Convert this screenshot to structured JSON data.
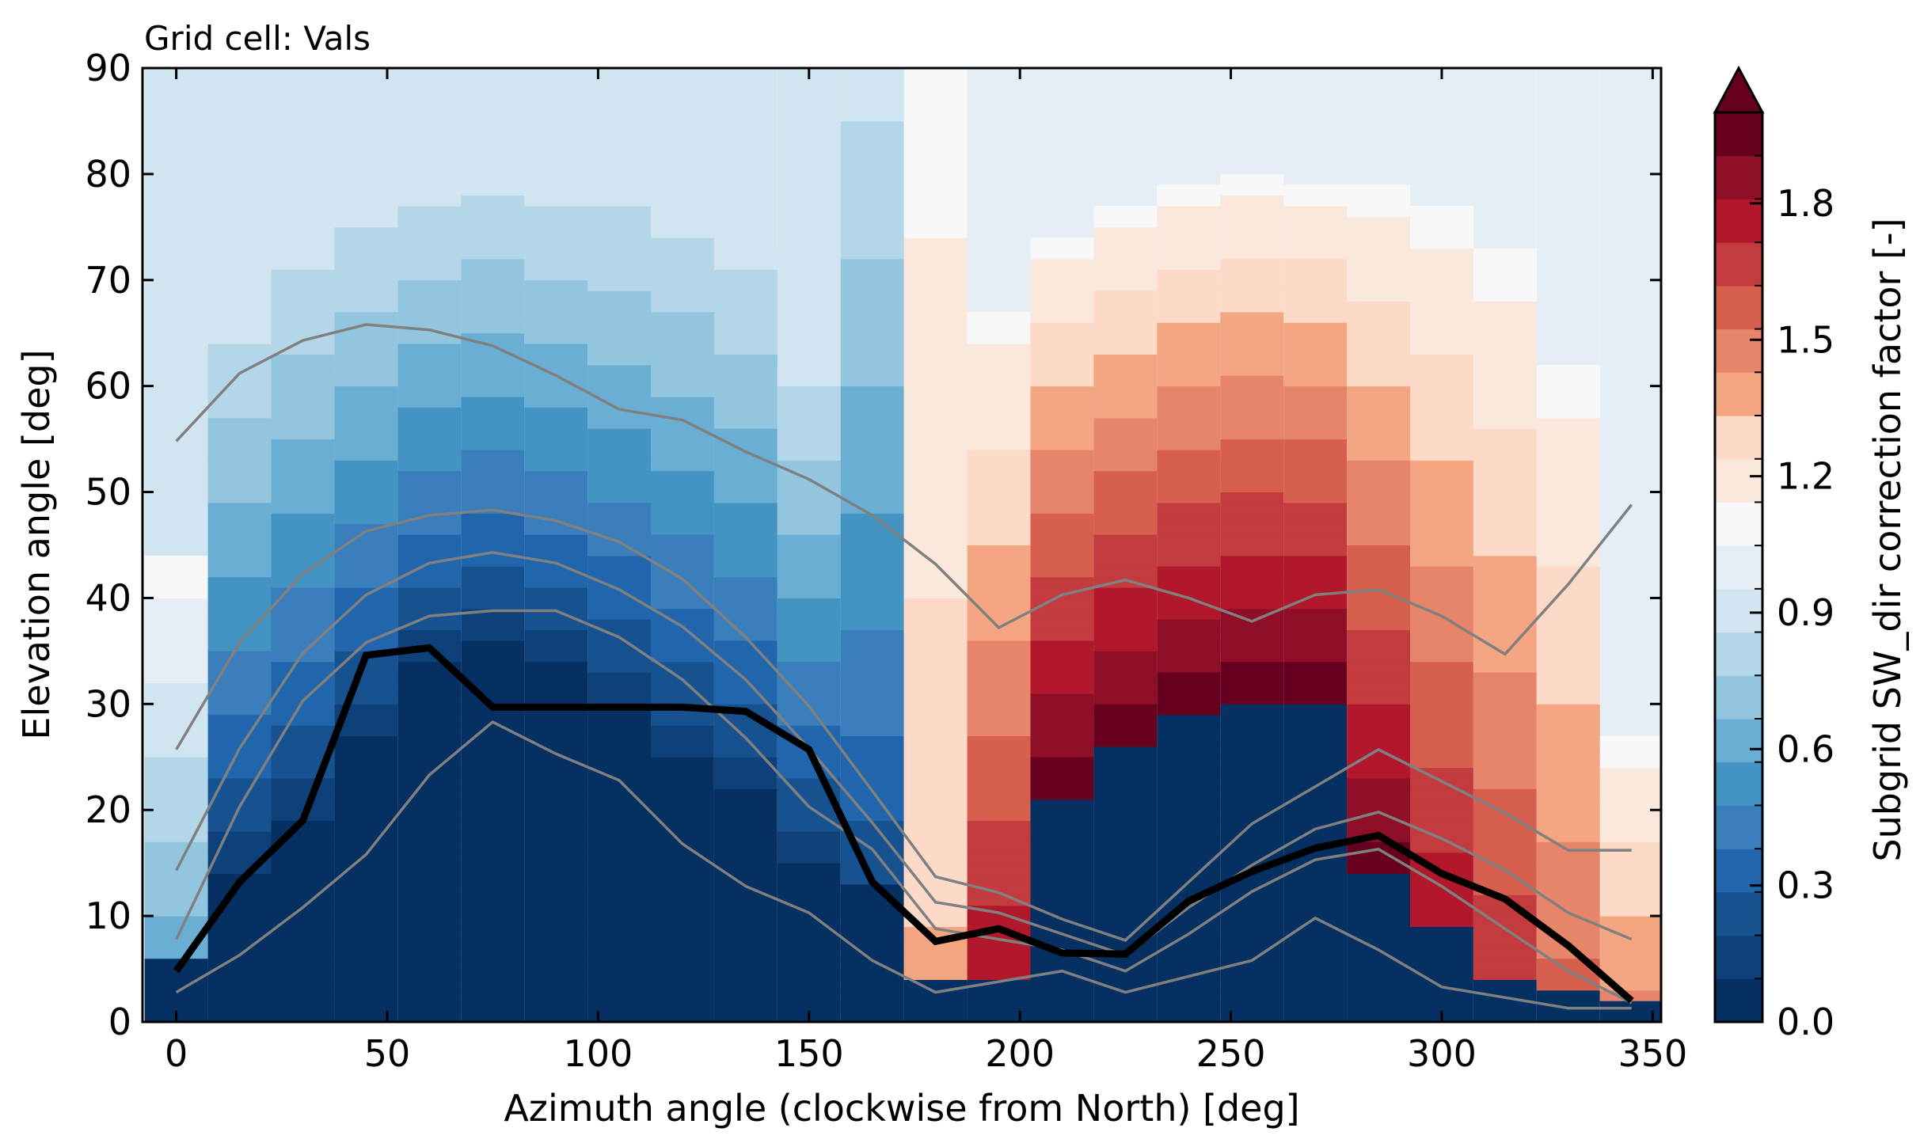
{
  "chart_data": {
    "type": "heatmap",
    "title": "Grid cell: Vals",
    "xlabel": "Azimuth angle (clockwise from North) [deg]",
    "ylabel": "Elevation angle [deg]",
    "colorbar_label": "Subgrid SW_dir correction factor [-]",
    "xlim": [
      -8,
      352
    ],
    "ylim": [
      0,
      90
    ],
    "xticks": [
      0,
      50,
      100,
      150,
      200,
      250,
      300,
      350
    ],
    "yticks": [
      0,
      10,
      20,
      30,
      40,
      50,
      60,
      70,
      80,
      90
    ],
    "colorbar_ticks": [
      "0.0",
      "0.3",
      "0.6",
      "0.9",
      "1.2",
      "1.5",
      "1.8"
    ],
    "colorbar_range": [
      0,
      2
    ],
    "colorbar_extend": "max",
    "colormap": [
      "#053061",
      "#0e4179",
      "#175290",
      "#2166ac",
      "#3a7ebb",
      "#4393c3",
      "#6aaed3",
      "#92c5de",
      "#b3d6e8",
      "#d1e5f0",
      "#e6eef5",
      "#f7f7f7",
      "#fbe8dd",
      "#fdd9c7",
      "#f4a582",
      "#e7856a",
      "#d6604d",
      "#c33b3e",
      "#b2182b",
      "#8f0e28",
      "#67001f"
    ],
    "azimuth_bins": [
      0,
      15,
      30,
      45,
      60,
      75,
      90,
      105,
      120,
      135,
      150,
      165,
      180,
      195,
      210,
      225,
      240,
      255,
      270,
      285,
      300,
      315,
      330,
      345
    ],
    "bin_width_deg": 15,
    "shadow_horizon": [
      5.5,
      14,
      18.5,
      26.5,
      33.5,
      35.5,
      33.5,
      29.5,
      24.5,
      21.5,
      14.5,
      12.5,
      4,
      4,
      20.5,
      25.5,
      28.5,
      29.5,
      29.5,
      14,
      8.5,
      3.5,
      2.5,
      1.5
    ],
    "valid_top": [
      44.5,
      67.5,
      74.5,
      77.5,
      79.5,
      80.5,
      79.5,
      79.5,
      77.5,
      73.5,
      62.5,
      90,
      90,
      67.5,
      74.5,
      77.5,
      79.5,
      80.5,
      79.5,
      79.5,
      77.5,
      73.5,
      62.5,
      27.5
    ],
    "side": [
      "sun",
      "shade",
      "shade",
      "shade",
      "shade",
      "shade",
      "shade",
      "shade",
      "shade",
      "shade",
      "shade",
      "shade",
      "sun",
      "sun",
      "sun",
      "sun",
      "sun",
      "sun",
      "sun",
      "sun",
      "sun",
      "sun",
      "sun",
      "sun"
    ],
    "peak_factor": [
      0.6,
      0.1,
      0.1,
      0.1,
      0.1,
      0.1,
      0.1,
      0.1,
      0.1,
      0.1,
      0.1,
      0.2,
      1.35,
      1.8,
      2.0,
      2.0,
      2.0,
      2.0,
      2.0,
      1.95,
      1.8,
      1.7,
      1.55,
      1.45
    ],
    "background_left": 0.9,
    "background_right": 1.0,
    "series": [
      {
        "name": "",
        "color": "#000000",
        "style": "bold",
        "x": [
          0,
          15,
          30,
          45,
          60,
          75,
          90,
          105,
          120,
          135,
          150,
          165,
          180,
          195,
          210,
          225,
          240,
          255,
          270,
          285,
          300,
          315,
          330,
          345
        ],
        "y": [
          4.8,
          13.2,
          19.0,
          34.6,
          35.3,
          29.7,
          29.7,
          29.7,
          29.7,
          29.3,
          25.7,
          13.2,
          7.6,
          8.8,
          6.5,
          6.4,
          11.4,
          14.2,
          16.4,
          17.6,
          14.0,
          11.6,
          7.2,
          2.0
        ]
      },
      {
        "name": "",
        "color": "#808080",
        "style": "thin",
        "x": [
          0,
          15,
          30,
          45,
          60,
          75,
          90,
          105,
          120,
          135,
          150,
          165,
          180,
          195,
          210,
          225,
          240,
          255,
          270,
          285,
          300,
          315,
          330,
          345
        ],
        "y": [
          54.8,
          61.2,
          64.3,
          65.8,
          65.3,
          63.8,
          61.0,
          57.8,
          56.8,
          53.8,
          51.2,
          47.8,
          43.2,
          37.2,
          40.3,
          41.7,
          40.0,
          37.8,
          40.3,
          40.8,
          38.3,
          34.7,
          41.3,
          48.8
        ]
      },
      {
        "name": "",
        "color": "#808080",
        "style": "thin",
        "x": [
          0,
          15,
          30,
          45,
          60,
          75,
          90,
          105,
          120,
          135,
          150,
          165,
          180,
          195,
          210,
          225,
          240,
          255,
          270,
          285,
          300,
          315,
          330,
          345
        ],
        "y": [
          25.7,
          35.8,
          42.3,
          46.3,
          47.8,
          48.3,
          47.3,
          45.3,
          41.8,
          36.3,
          29.8,
          21.8,
          13.7,
          12.2,
          9.7,
          7.7,
          13.2,
          18.7,
          22.2,
          25.7,
          22.7,
          19.7,
          16.2,
          16.2
        ]
      },
      {
        "name": "",
        "color": "#808080",
        "style": "thin",
        "x": [
          0,
          15,
          30,
          45,
          60,
          75,
          90,
          105,
          120,
          135,
          150,
          165,
          180,
          195,
          210,
          225,
          240,
          255,
          270,
          285,
          300,
          315,
          330,
          345
        ],
        "y": [
          14.3,
          25.8,
          34.8,
          40.3,
          43.3,
          44.3,
          43.3,
          40.8,
          37.3,
          32.3,
          25.8,
          18.8,
          11.3,
          10.3,
          8.3,
          6.3,
          10.8,
          14.8,
          18.2,
          19.8,
          17.3,
          14.3,
          10.3,
          7.8
        ]
      },
      {
        "name": "",
        "color": "#808080",
        "style": "thin",
        "x": [
          0,
          15,
          30,
          45,
          60,
          75,
          90,
          105,
          120,
          135,
          150,
          165,
          180,
          195,
          210,
          225,
          240,
          255,
          270,
          285,
          300,
          315,
          330,
          345
        ],
        "y": [
          7.8,
          20.3,
          30.3,
          35.8,
          38.3,
          38.8,
          38.8,
          36.3,
          32.3,
          26.8,
          20.3,
          16.3,
          8.8,
          7.8,
          6.8,
          4.8,
          8.3,
          12.3,
          15.3,
          16.3,
          12.8,
          8.8,
          4.8,
          1.8
        ]
      },
      {
        "name": "",
        "color": "#808080",
        "style": "thin",
        "x": [
          0,
          15,
          30,
          45,
          60,
          75,
          90,
          105,
          120,
          135,
          150,
          165,
          180,
          195,
          210,
          225,
          240,
          255,
          270,
          285,
          300,
          315,
          330,
          345
        ],
        "y": [
          2.8,
          6.3,
          10.8,
          15.8,
          23.3,
          28.3,
          25.3,
          22.8,
          16.8,
          12.8,
          10.3,
          5.8,
          2.8,
          3.8,
          4.8,
          2.8,
          4.3,
          5.8,
          9.8,
          6.8,
          3.3,
          2.3,
          1.3,
          1.3
        ]
      }
    ]
  }
}
